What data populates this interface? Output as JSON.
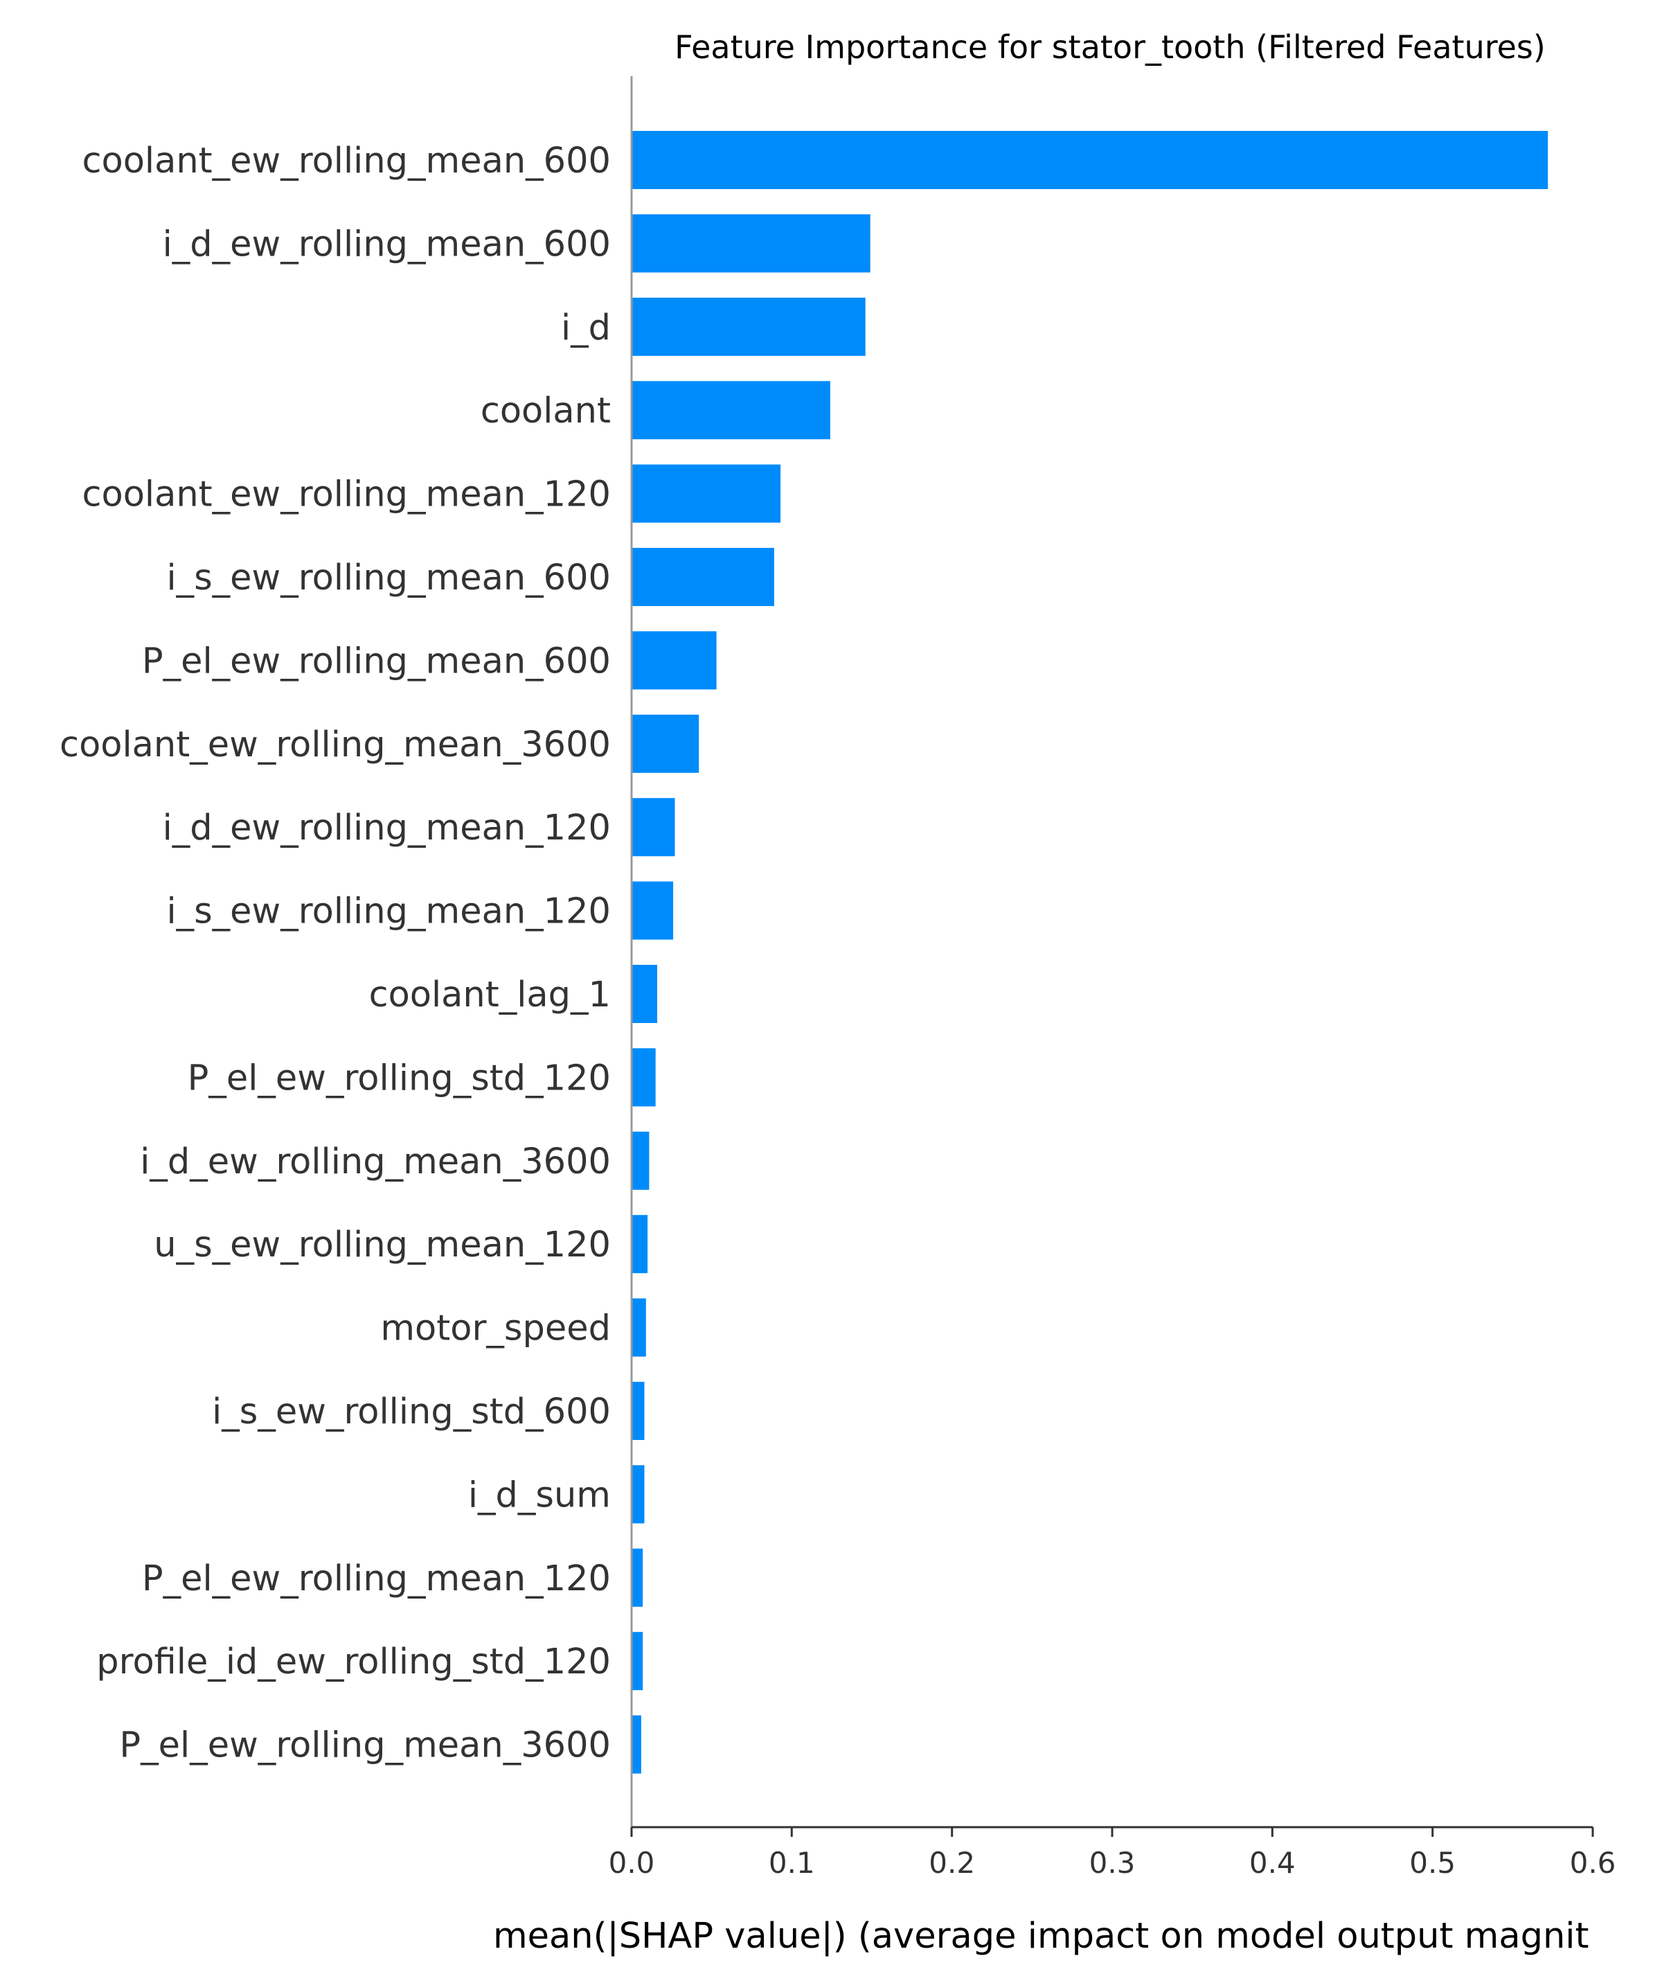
{
  "chart_data": {
    "type": "bar",
    "orientation": "horizontal",
    "title": "Feature Importance for stator_tooth (Filtered Features)",
    "xlabel": "mean(|SHAP value|) (average impact on model output magnit",
    "ylabel": "",
    "xlim": [
      0,
      0.6
    ],
    "xticks": [
      0.0,
      0.1,
      0.2,
      0.3,
      0.4,
      0.5,
      0.6
    ],
    "xtick_labels": [
      "0.0",
      "0.1",
      "0.2",
      "0.3",
      "0.4",
      "0.5",
      "0.6"
    ],
    "bar_color": "#008bfb",
    "grid": false,
    "categories": [
      "coolant_ew_rolling_mean_600",
      "i_d_ew_rolling_mean_600",
      "i_d",
      "coolant",
      "coolant_ew_rolling_mean_120",
      "i_s_ew_rolling_mean_600",
      "P_el_ew_rolling_mean_600",
      "coolant_ew_rolling_mean_3600",
      "i_d_ew_rolling_mean_120",
      "i_s_ew_rolling_mean_120",
      "coolant_lag_1",
      "P_el_ew_rolling_std_120",
      "i_d_ew_rolling_mean_3600",
      "u_s_ew_rolling_mean_120",
      "motor_speed",
      "i_s_ew_rolling_std_600",
      "i_d_sum",
      "P_el_ew_rolling_mean_120",
      "profile_id_ew_rolling_std_120",
      "P_el_ew_rolling_mean_3600"
    ],
    "values": [
      0.572,
      0.149,
      0.146,
      0.124,
      0.093,
      0.089,
      0.053,
      0.042,
      0.027,
      0.026,
      0.016,
      0.015,
      0.011,
      0.01,
      0.009,
      0.008,
      0.008,
      0.007,
      0.007,
      0.006
    ]
  }
}
